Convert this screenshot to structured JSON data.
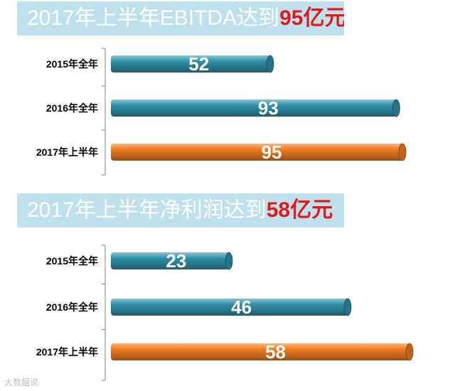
{
  "chart_data": [
    {
      "type": "bar",
      "orientation": "horizontal",
      "title": "2017年上半年EBITDA达到",
      "title_highlight": "95亿元",
      "categories": [
        "2015年全年",
        "2016年全年",
        "2017年上半年"
      ],
      "values": [
        52,
        93,
        95
      ],
      "bar_colors": [
        "#2f8fa8",
        "#2f8fa8",
        "#f07a1e"
      ],
      "xlim": [
        0,
        95
      ],
      "grid": false,
      "legend": "none"
    },
    {
      "type": "bar",
      "orientation": "horizontal",
      "title": "2017年上半年净利润达到",
      "title_highlight": "58亿元",
      "categories": [
        "2015年全年",
        "2016年全年",
        "2017年上半年"
      ],
      "values": [
        23,
        46,
        58
      ],
      "bar_colors": [
        "#2f8fa8",
        "#2f8fa8",
        "#f07a1e"
      ],
      "xlim": [
        0,
        58
      ],
      "grid": false,
      "legend": "none"
    }
  ],
  "watermark": "大数据说"
}
